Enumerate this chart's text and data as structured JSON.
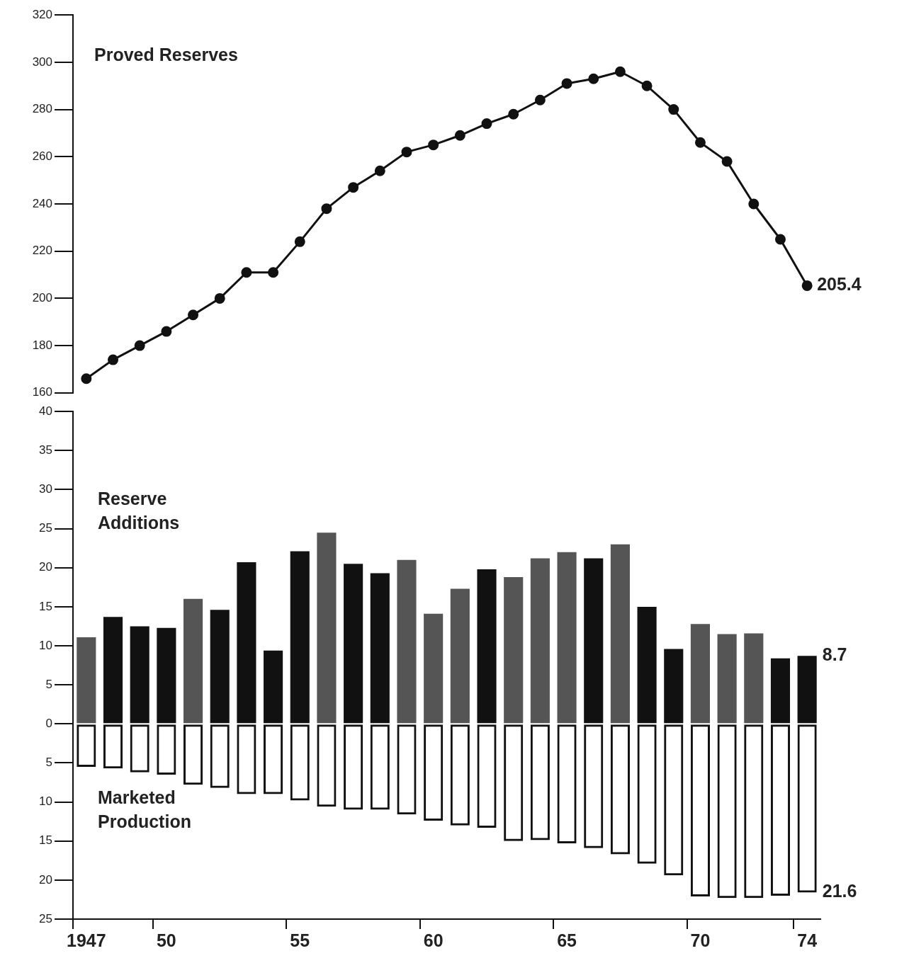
{
  "chart_data": [
    {
      "type": "line",
      "categories": [
        "1947",
        null,
        null,
        "50",
        null,
        null,
        null,
        null,
        "55",
        null,
        null,
        null,
        null,
        "60",
        null,
        null,
        null,
        null,
        "65",
        null,
        null,
        null,
        null,
        "70",
        null,
        null,
        null,
        "74"
      ],
      "series": [
        {
          "name": "Proved Reserves",
          "color": "#111111",
          "values": [
            166,
            174,
            180,
            186,
            193,
            200,
            211,
            211,
            224,
            238,
            247,
            254,
            262,
            265,
            269,
            274,
            278,
            284,
            291,
            293,
            296,
            290,
            280,
            266,
            258,
            240,
            225,
            205.4
          ]
        }
      ],
      "ylim": [
        160,
        320
      ],
      "yticks": [
        160,
        180,
        200,
        220,
        240,
        260,
        280,
        300,
        320
      ],
      "marker": "circle",
      "tick_labels": "y",
      "legend": "top left",
      "grid": false,
      "annotations": [
        {
          "text": "205.4",
          "x": "74",
          "y": 205.4
        }
      ]
    },
    {
      "type": "bar",
      "stacked": true,
      "categories": [
        "1947",
        null,
        null,
        "50",
        null,
        null,
        null,
        null,
        "55",
        null,
        null,
        null,
        null,
        "60",
        null,
        null,
        null,
        null,
        "65",
        null,
        null,
        null,
        null,
        "70",
        null,
        null,
        null,
        "74"
      ],
      "series": [
        {
          "name": "Reserve Additions",
          "colors": [
            "#555555",
            "#111111",
            "#111111",
            "#111111",
            "#555555",
            "#111111",
            "#111111",
            "#111111",
            "#111111",
            "#555555",
            "#111111",
            "#111111",
            "#555555",
            "#555555",
            "#555555",
            "#111111",
            "#555555",
            "#555555",
            "#555555",
            "#111111",
            "#555555",
            "#111111",
            "#111111",
            "#555555",
            "#555555",
            "#555555",
            "#111111",
            "#111111"
          ],
          "values": [
            11.1,
            13.7,
            12.5,
            12.3,
            16,
            14.6,
            20.7,
            9.4,
            22.1,
            24.5,
            20.5,
            19.3,
            21,
            14.1,
            17.3,
            19.8,
            18.8,
            21.2,
            22,
            21.2,
            23,
            15,
            9.6,
            12.8,
            11.5,
            11.6,
            8.4,
            8.7
          ]
        },
        {
          "name": "Marketed Production",
          "color": "#111111",
          "values": [
            -5.5,
            -5.7,
            -6.2,
            -6.5,
            -7.8,
            -8.2,
            -9,
            -9,
            -9.8,
            -10.6,
            -11,
            -11,
            -11.6,
            -12.4,
            -13,
            -13.3,
            -15,
            -14.9,
            -15.3,
            -15.9,
            -16.7,
            -17.9,
            -19.4,
            -22.1,
            -22.3,
            -22.3,
            -22,
            -21.6
          ]
        }
      ],
      "annotations": [
        {
          "text": "8.7",
          "x": "74",
          "y": 8.7
        },
        {
          "text": "21.6",
          "x": "74",
          "y": -21.6
        }
      ],
      "ylim": [
        -25,
        40
      ],
      "yticks": [
        {
          "value": -25,
          "label": "25"
        },
        {
          "value": -20,
          "label": "20"
        },
        {
          "value": -15,
          "label": "15"
        },
        {
          "value": -10,
          "label": "10"
        },
        {
          "value": -5,
          "label": "5"
        },
        0,
        5,
        10,
        15,
        20,
        25,
        30,
        35,
        40
      ],
      "legend": "left",
      "grid": false
    }
  ]
}
